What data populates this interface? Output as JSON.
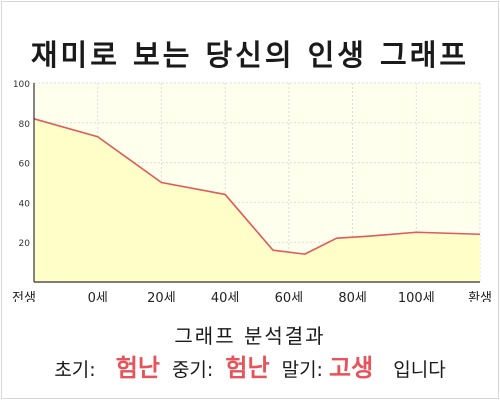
{
  "title": "재미로 보는 당신의 인생 그래프",
  "chart_data": {
    "type": "area",
    "x": [
      "전생",
      "0세",
      "20세",
      "40세",
      "60세",
      "80세",
      "100세",
      "환생"
    ],
    "points": [
      {
        "x": "전생",
        "y": 82
      },
      {
        "x": "0세",
        "y": 73
      },
      {
        "x": "20세",
        "y": 50
      },
      {
        "x": "40세",
        "y": 44
      },
      {
        "x": "60세",
        "y": 16
      },
      {
        "x": "60세",
        "y": 14
      },
      {
        "x": "80세",
        "y": 22
      },
      {
        "x": "80세",
        "y": 23
      },
      {
        "x": "100세",
        "y": 25
      },
      {
        "x": "환생",
        "y": 24
      }
    ],
    "yticks": [
      20,
      40,
      60,
      80,
      100
    ],
    "ylim": [
      0,
      100
    ],
    "grid": true,
    "line_color": "#e05a5a",
    "fill_color": "#fffec8"
  },
  "result": {
    "heading": "그래프 분석결과",
    "early_label": "초기:",
    "early_value": "험난",
    "mid_label": "중기:",
    "mid_value": "험난",
    "late_label": "말기:",
    "late_value": "고생",
    "suffix": "입니다"
  }
}
